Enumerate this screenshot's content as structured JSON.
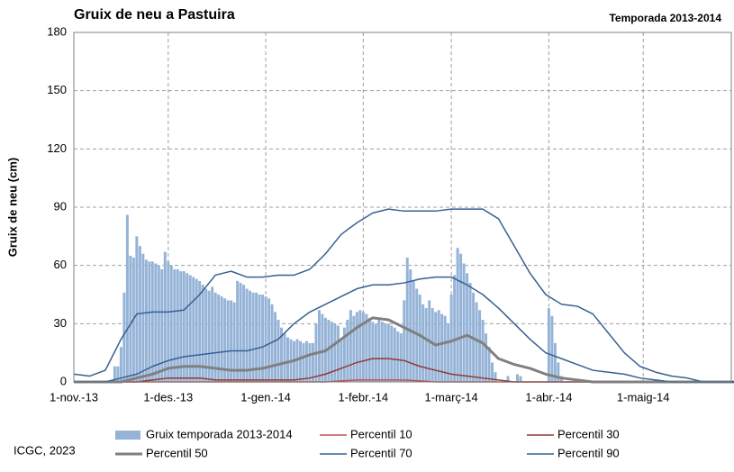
{
  "chart_data": {
    "type": "bar-line",
    "title": "Gruix de neu a Pastuira",
    "subtitle": "Temporada 2013-2014",
    "y_label": "Gruix de neu (cm)",
    "source": "ICGC, 2023",
    "xlim": [
      0,
      209
    ],
    "xticks": [
      {
        "value": 0,
        "label": "1-nov.-13"
      },
      {
        "value": 30,
        "label": "1-des.-13"
      },
      {
        "value": 61,
        "label": "1-gen.-14"
      },
      {
        "value": 92,
        "label": "1-febr.-14"
      },
      {
        "value": 120,
        "label": "1-març-14"
      },
      {
        "value": 151,
        "label": "1-abr.-14"
      },
      {
        "value": 181,
        "label": "1-maig-14"
      }
    ],
    "ylim": [
      0,
      180
    ],
    "yticks": [
      0,
      30,
      60,
      90,
      120,
      150,
      180
    ],
    "grid": true,
    "x": [
      0,
      5,
      10,
      15,
      20,
      25,
      30,
      35,
      40,
      45,
      50,
      55,
      60,
      65,
      70,
      75,
      80,
      85,
      90,
      95,
      100,
      105,
      110,
      115,
      120,
      125,
      130,
      135,
      140,
      145,
      150,
      155,
      160,
      165,
      170,
      175,
      180,
      185,
      190,
      195,
      200,
      205,
      210
    ],
    "series": [
      {
        "name": "Gruix temporada 2013-2014",
        "type": "bar",
        "color": "#95b3d7",
        "x": [
          13,
          14,
          15,
          16,
          17,
          18,
          19,
          20,
          21,
          22,
          23,
          24,
          25,
          26,
          27,
          28,
          29,
          30,
          31,
          32,
          33,
          34,
          35,
          36,
          37,
          38,
          39,
          40,
          41,
          42,
          43,
          44,
          45,
          46,
          47,
          48,
          49,
          50,
          51,
          52,
          53,
          54,
          55,
          56,
          57,
          58,
          59,
          60,
          61,
          62,
          63,
          64,
          65,
          66,
          67,
          68,
          69,
          70,
          71,
          72,
          73,
          74,
          75,
          76,
          77,
          78,
          79,
          80,
          81,
          82,
          83,
          84,
          85,
          86,
          87,
          88,
          89,
          90,
          91,
          92,
          93,
          94,
          95,
          96,
          97,
          98,
          99,
          100,
          101,
          102,
          103,
          104,
          105,
          106,
          107,
          108,
          109,
          110,
          111,
          112,
          113,
          114,
          115,
          116,
          117,
          118,
          119,
          120,
          121,
          122,
          123,
          124,
          125,
          126,
          127,
          128,
          129,
          130,
          131,
          132,
          133,
          134,
          135,
          136,
          137,
          138,
          139,
          140,
          141,
          142,
          143,
          144,
          145,
          146,
          147,
          148,
          149,
          150,
          151,
          152,
          153,
          154,
          155,
          156
        ],
        "values": [
          8,
          8,
          18,
          46,
          86,
          65,
          64,
          75,
          70,
          66,
          63,
          62,
          62,
          61,
          60,
          58,
          67,
          62,
          60,
          58,
          58,
          57,
          57,
          56,
          55,
          54,
          53,
          52,
          50,
          48,
          47,
          49,
          46,
          45,
          44,
          43,
          42,
          42,
          41,
          52,
          51,
          50,
          48,
          47,
          46,
          46,
          45,
          45,
          44,
          43,
          40,
          36,
          32,
          28,
          25,
          23,
          22,
          21,
          22,
          21,
          20,
          21,
          20,
          20,
          30,
          37,
          35,
          33,
          32,
          31,
          30,
          29,
          22,
          28,
          32,
          37,
          34,
          36,
          37,
          36,
          35,
          33,
          31,
          30,
          32,
          31,
          30,
          30,
          29,
          28,
          26,
          25,
          42,
          64,
          58,
          52,
          48,
          45,
          40,
          38,
          42,
          38,
          36,
          37,
          35,
          34,
          30,
          45,
          55,
          69,
          66,
          61,
          56,
          51,
          46,
          41,
          37,
          32,
          25,
          18,
          10,
          5,
          0,
          0,
          0,
          3,
          0,
          0,
          4,
          3,
          0,
          0,
          0,
          0,
          0,
          0,
          0,
          0,
          38,
          34,
          20,
          10,
          3,
          0
        ]
      },
      {
        "name": "Percentil 10",
        "color": "#c0504d",
        "width": 1.5,
        "values": [
          0,
          0,
          0,
          0,
          0,
          0,
          0,
          0,
          0,
          0,
          0,
          0,
          0,
          0,
          0,
          0,
          0,
          0.5,
          1,
          1,
          1,
          1,
          0.5,
          0,
          0,
          0,
          0,
          0,
          0,
          0,
          0,
          0,
          0,
          0,
          0,
          0,
          0,
          0,
          0,
          0,
          0,
          0,
          0
        ]
      },
      {
        "name": "Percentil 30",
        "color": "#953735",
        "width": 1.5,
        "values": [
          0,
          0,
          0,
          0,
          0,
          1,
          2,
          2,
          2,
          1,
          1,
          1,
          1,
          1,
          1,
          2,
          4,
          7,
          10,
          12,
          12,
          11,
          8,
          6,
          4,
          3,
          2,
          1,
          0,
          0,
          0,
          0,
          0,
          0,
          0,
          0,
          0,
          0,
          0,
          0,
          0,
          0,
          0
        ]
      },
      {
        "name": "Percentil 50",
        "color": "#808080",
        "width": 3,
        "values": [
          0,
          0,
          0,
          0,
          2,
          4,
          7,
          8,
          8,
          7,
          6,
          6,
          7,
          9,
          11,
          14,
          16,
          22,
          28,
          33,
          32,
          28,
          24,
          19,
          21,
          24,
          20,
          12,
          9,
          7,
          4,
          2,
          1,
          0,
          0,
          0,
          0,
          0,
          0,
          0,
          0,
          0,
          0
        ]
      },
      {
        "name": "Percentil 70",
        "color": "#376092",
        "width": 1.5,
        "values": [
          0,
          0,
          0,
          2,
          4,
          8,
          11,
          13,
          14,
          15,
          16,
          16,
          18,
          22,
          30,
          36,
          40,
          44,
          48,
          50,
          50,
          51,
          53,
          54,
          54,
          50,
          45,
          38,
          30,
          22,
          15,
          12,
          9,
          6,
          5,
          4,
          2,
          1,
          0,
          0,
          0,
          0,
          0
        ]
      },
      {
        "name": "Percentil 90",
        "color": "#376092",
        "width": 1.5,
        "values": [
          4,
          3,
          6,
          22,
          35,
          36,
          36,
          37,
          45,
          55,
          57,
          54,
          54,
          55,
          55,
          58,
          66,
          76,
          82,
          87,
          89,
          88,
          88,
          88,
          89,
          89,
          89,
          84,
          70,
          56,
          45,
          40,
          39,
          35,
          25,
          15,
          8,
          5,
          3,
          2,
          0,
          0,
          0
        ]
      }
    ]
  }
}
